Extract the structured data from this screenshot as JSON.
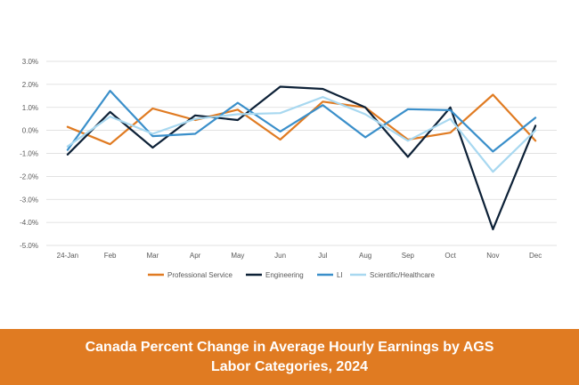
{
  "banner": {
    "title_line1": "Canada Percent Change in Average Hourly Earnings by AGS",
    "title_line2": "Labor Categories, 2024",
    "color": "#e07b22"
  },
  "chart_data": {
    "type": "line",
    "title": "Canada Percent Change in Average Hourly Earnings by AGS Labor Categories, 2024",
    "categories": [
      "24-Jan",
      "Feb",
      "Mar",
      "Apr",
      "May",
      "Jun",
      "Jul",
      "Aug",
      "Sep",
      "Oct",
      "Nov",
      "Dec"
    ],
    "ylim": [
      -5,
      3
    ],
    "yticks": [
      3,
      2,
      1,
      0,
      -1,
      -2,
      -3,
      -4,
      -5
    ],
    "ytick_labels": [
      "3.0%",
      "2.0%",
      "1.0%",
      "0.0%",
      "-1.0%",
      "-2.0%",
      "-3.0%",
      "-4.0%",
      "-5.0%"
    ],
    "grid": true,
    "legend_position": "bottom",
    "series": [
      {
        "name": "Professional Service",
        "color": "#e07b22",
        "values": [
          0.15,
          -0.6,
          0.95,
          0.45,
          0.9,
          -0.4,
          1.25,
          1.0,
          -0.4,
          -0.1,
          1.55,
          -0.45
        ]
      },
      {
        "name": "Engineering",
        "color": "#0d2137",
        "values": [
          -1.05,
          0.8,
          -0.75,
          0.65,
          0.45,
          1.9,
          1.8,
          1.0,
          -1.15,
          1.0,
          -4.3,
          0.2
        ]
      },
      {
        "name": "LI",
        "color": "#3a8fca",
        "values": [
          -0.85,
          1.72,
          -0.25,
          -0.15,
          1.2,
          -0.05,
          1.1,
          -0.3,
          0.92,
          0.88,
          -0.92,
          0.55
        ]
      },
      {
        "name": "Scientific/Healthcare",
        "color": "#a8d8f0",
        "values": [
          -0.7,
          0.6,
          -0.15,
          0.5,
          0.7,
          0.75,
          1.45,
          0.7,
          -0.45,
          0.5,
          -1.8,
          0.0
        ]
      }
    ]
  }
}
